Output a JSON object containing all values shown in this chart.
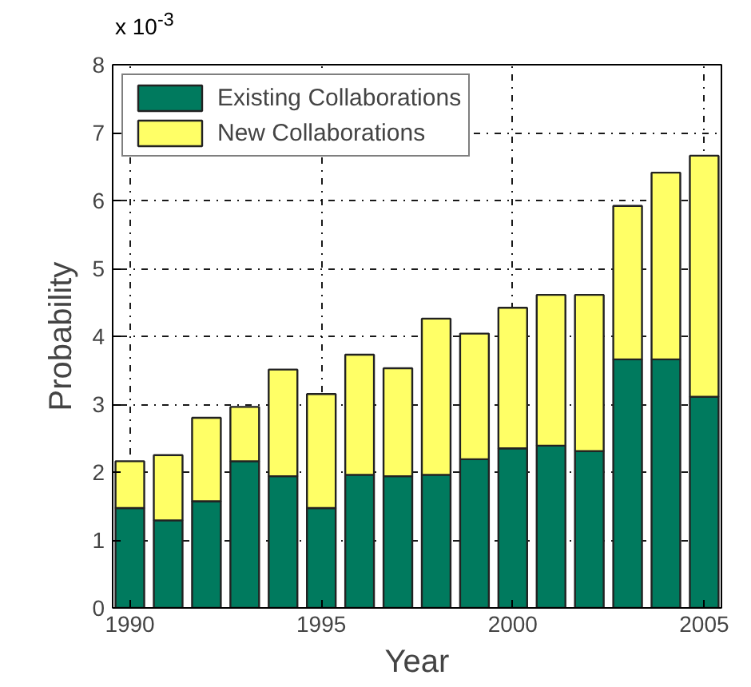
{
  "chart_data": {
    "type": "bar",
    "stacked": true,
    "xlabel": "Year",
    "ylabel": "Probability",
    "annotations": [
      "x 10$^{-3}$"
    ],
    "x": [
      1990,
      1991,
      1992,
      1993,
      1994,
      1995,
      1996,
      1997,
      1998,
      1999,
      2000,
      2001,
      2002,
      2003,
      2004,
      2005
    ],
    "series": [
      {
        "name": "Existing Collaborations",
        "color": "#007a5e",
        "values": [
          1.47,
          1.29,
          1.57,
          2.16,
          1.94,
          1.47,
          1.96,
          1.94,
          1.96,
          2.19,
          2.35,
          2.39,
          2.31,
          3.66,
          3.66,
          3.11
        ]
      },
      {
        "name": "New Collaborations",
        "color": "#ffff66",
        "values": [
          0.69,
          0.96,
          1.23,
          0.8,
          1.57,
          1.68,
          1.77,
          1.59,
          2.3,
          1.85,
          2.07,
          2.22,
          2.3,
          2.26,
          2.75,
          3.55
        ]
      }
    ],
    "xlim": [
      1989.55,
      2005.45
    ],
    "xticks": [
      1990,
      1995,
      2000,
      2005
    ],
    "ylim": [
      0,
      8
    ],
    "yticks": [
      0,
      1,
      2,
      3,
      4,
      5,
      6,
      7,
      8
    ],
    "grid": true,
    "legend": "top left"
  }
}
